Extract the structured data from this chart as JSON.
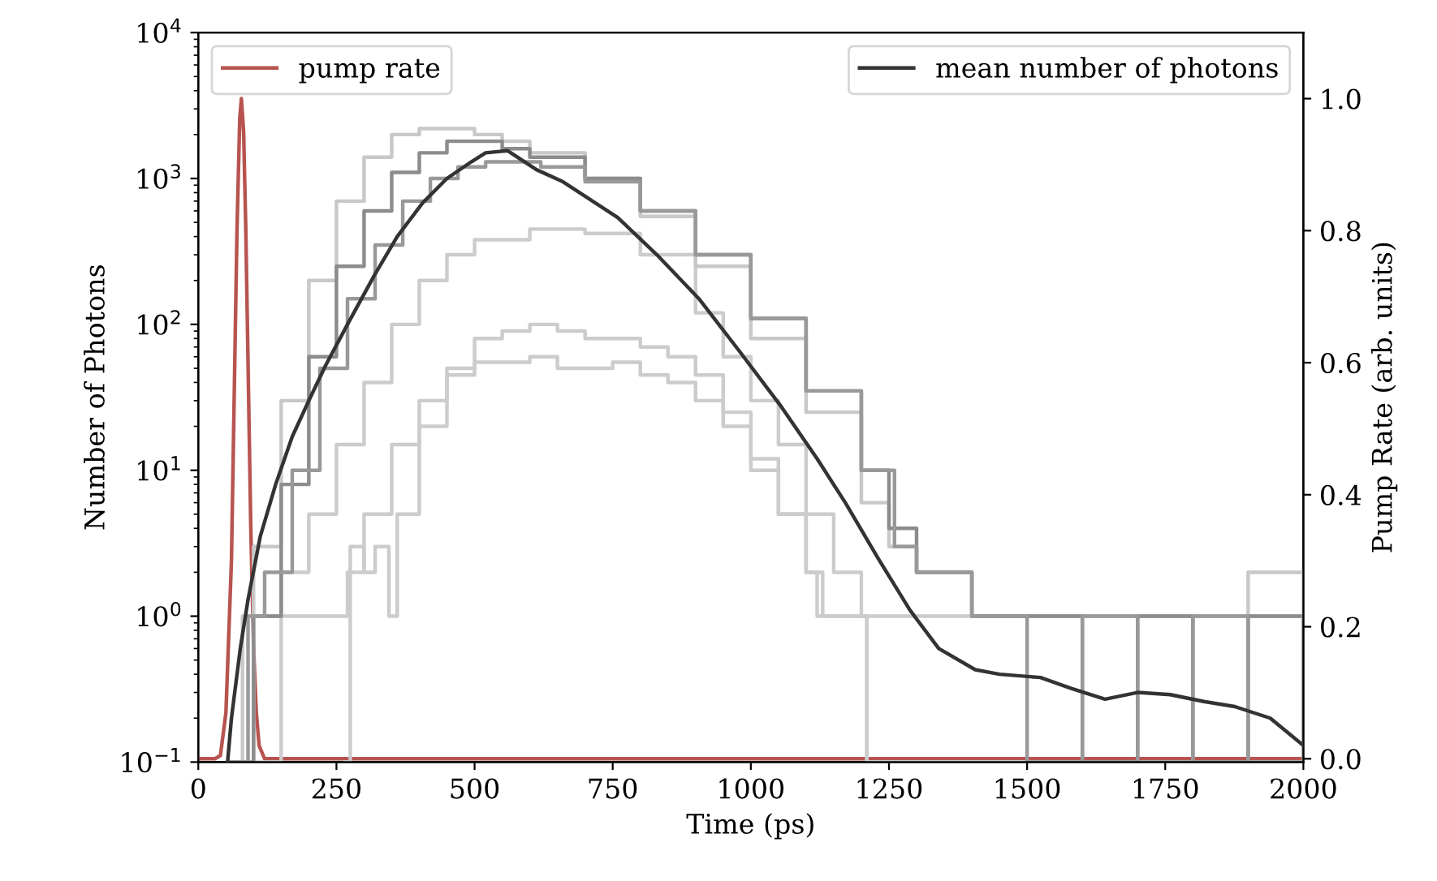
{
  "chart_data": {
    "type": "line",
    "xlabel": "Time (ps)",
    "ylabel": "Number of Photons",
    "y2label": "Pump Rate (arb. units)",
    "log": "y",
    "legend": "top",
    "xlim": [
      0,
      2000
    ],
    "xticks": [
      0,
      250,
      500,
      750,
      1000,
      1250,
      1500,
      1750,
      2000
    ],
    "ylim": [
      0.1,
      10000
    ],
    "yticks": [
      {
        "value": 0.1,
        "label": "10$^{−1}$"
      },
      {
        "value": 1,
        "label": "10$^{0}$"
      },
      {
        "value": 10,
        "label": "10$^{1}$"
      },
      {
        "value": 100,
        "label": "10$^{2}$"
      },
      {
        "value": 1000,
        "label": "10$^{3}$"
      },
      {
        "value": 10000,
        "label": "10$^{4}$"
      }
    ],
    "y2lim": [
      -0.005,
      1.1
    ],
    "y2ticks": [
      {
        "value": 0,
        "label": "0.0"
      },
      0.2,
      0.4,
      0.6,
      0.8,
      {
        "value": 1,
        "label": "1.0"
      }
    ],
    "series": [
      {
        "type": "step",
        "color": "#cccccc",
        "x": [
          265,
          275,
          300,
          320,
          345,
          360,
          400,
          450,
          500,
          550,
          600,
          650,
          700,
          750,
          800,
          850,
          900,
          950,
          1000,
          1050,
          1100,
          1120,
          1200,
          1210,
          2000
        ],
        "values": [
          0.1,
          3,
          2,
          3,
          1,
          5,
          20,
          50,
          80,
          90,
          100,
          90,
          80,
          80,
          70,
          60,
          45,
          25,
          12,
          5,
          2,
          1,
          1,
          0.1,
          0.1
        ]
      },
      {
        "type": "step",
        "color": "#cccccc",
        "x": [
          60,
          100,
          150,
          200,
          240,
          270,
          300,
          350,
          400,
          450,
          500,
          550,
          600,
          650,
          700,
          750,
          800,
          850,
          900,
          950,
          1000,
          1050,
          1100,
          1130,
          1200,
          1210,
          2000
        ],
        "values": [
          0.1,
          0.1,
          1,
          1,
          1,
          2,
          5,
          15,
          30,
          45,
          55,
          55,
          60,
          50,
          50,
          55,
          45,
          40,
          30,
          20,
          10,
          5,
          2,
          1,
          1,
          0.1,
          0.1
        ]
      },
      {
        "type": "step",
        "color": "#cccccc",
        "x": [
          60,
          100,
          150,
          200,
          250,
          300,
          350,
          400,
          450,
          500,
          600,
          700,
          800,
          900,
          950,
          1000,
          1050,
          1100,
          1150,
          1200,
          1300,
          1400,
          2000
        ],
        "values": [
          0.1,
          1,
          2,
          5,
          15,
          40,
          100,
          200,
          300,
          380,
          450,
          420,
          300,
          120,
          60,
          30,
          15,
          5,
          2,
          1,
          1,
          1,
          1
        ]
      },
      {
        "type": "step",
        "color": "#c8c8c8",
        "x": [
          60,
          80,
          100,
          150,
          200,
          250,
          300,
          350,
          400,
          450,
          500,
          550,
          600,
          700,
          800,
          900,
          1000,
          1100,
          1200,
          1250,
          1300,
          1400,
          1500,
          1600,
          1700,
          1800,
          1900,
          2000
        ],
        "values": [
          0.1,
          1,
          3,
          30,
          200,
          700,
          1400,
          2000,
          2200,
          2200,
          2000,
          1800,
          1500,
          1000,
          550,
          250,
          80,
          25,
          6,
          3,
          2,
          1,
          1,
          1,
          1,
          1,
          2,
          1
        ]
      },
      {
        "type": "step",
        "color": "#8c8c8c",
        "x": [
          60,
          80,
          100,
          150,
          200,
          250,
          300,
          350,
          400,
          450,
          500,
          550,
          600,
          700,
          800,
          900,
          1000,
          1100,
          1200,
          1250,
          1300,
          1400,
          1500,
          1600,
          1700,
          1800,
          1900,
          2000
        ],
        "values": [
          0.1,
          0.1,
          1,
          8,
          60,
          250,
          600,
          1100,
          1500,
          1800,
          1800,
          1600,
          1400,
          1000,
          600,
          300,
          110,
          35,
          10,
          4,
          2,
          1,
          1,
          0.1,
          1,
          0.1,
          1,
          1
        ]
      },
      {
        "type": "step",
        "color": "#999999",
        "x": [
          60,
          90,
          120,
          170,
          220,
          270,
          320,
          370,
          420,
          470,
          520,
          570,
          620,
          700,
          800,
          900,
          1000,
          1100,
          1200,
          1260,
          1300,
          1400,
          1500,
          1600,
          1700,
          1800,
          1900,
          2000
        ],
        "values": [
          0.1,
          1,
          2,
          10,
          50,
          150,
          350,
          700,
          1000,
          1200,
          1300,
          1300,
          1200,
          950,
          600,
          300,
          110,
          35,
          10,
          3,
          2,
          1,
          0.1,
          1,
          0.1,
          1,
          0.1,
          1
        ]
      },
      {
        "name": "mean number of photons",
        "color": "#333333",
        "x": [
          53,
          60,
          76,
          90,
          112,
          140,
          170,
          200,
          230,
          270,
          318,
          360,
          406,
          450,
          494,
          520,
          560,
          612,
          660,
          759,
          830,
          906,
          980,
          1053,
          1120,
          1171,
          1230,
          1288,
          1340,
          1406,
          1450,
          1524,
          1580,
          1641,
          1700,
          1759,
          1820,
          1876,
          1940,
          2000
        ],
        "values": [
          0.1,
          0.2,
          0.6,
          1.3,
          3.5,
          8,
          17,
          30,
          52,
          100,
          215,
          400,
          680,
          1000,
          1300,
          1500,
          1550,
          1150,
          950,
          540,
          300,
          150,
          65,
          28,
          12,
          6,
          2.5,
          1.1,
          0.6,
          0.43,
          0.4,
          0.38,
          0.32,
          0.27,
          0.3,
          0.29,
          0.26,
          0.24,
          0.2,
          0.13
        ]
      },
      {
        "name": "pump rate",
        "color": "#b85450",
        "axis": "y2",
        "x": [
          0,
          30,
          40,
          50,
          60,
          65,
          70,
          75,
          78,
          82,
          86,
          90,
          95,
          100,
          105,
          110,
          120,
          130,
          2000
        ],
        "values": [
          0,
          0,
          0.005,
          0.07,
          0.3,
          0.55,
          0.8,
          0.97,
          1.0,
          0.95,
          0.8,
          0.6,
          0.35,
          0.17,
          0.07,
          0.02,
          0,
          0,
          0
        ]
      }
    ]
  }
}
